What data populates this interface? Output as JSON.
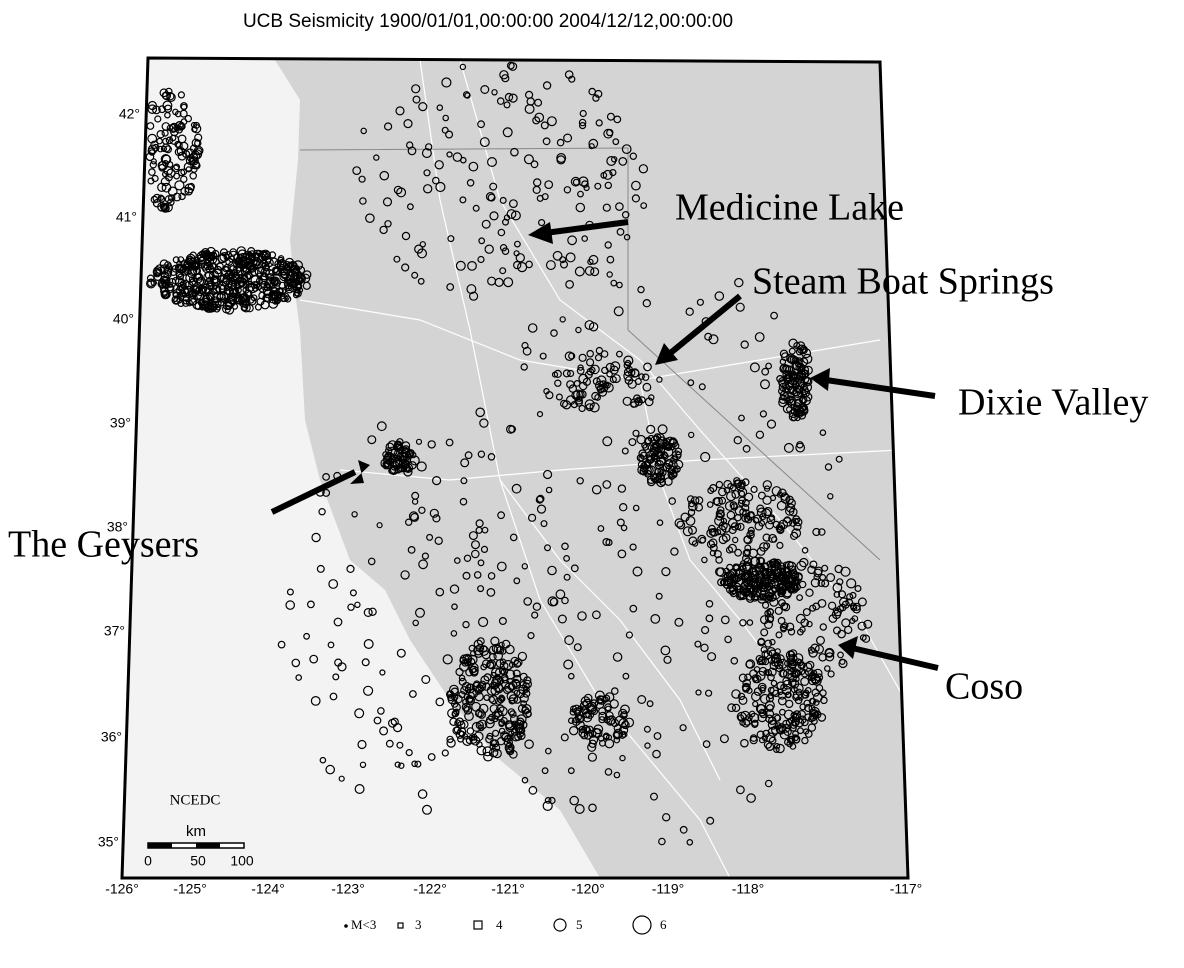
{
  "title": "UCB Seismicity 1900/01/01,00:00:00 2004/12/12,00:00:00",
  "latitude_labels": [
    "42°",
    "41°",
    "40°",
    "39°",
    "38°",
    "37°",
    "36°",
    "35°"
  ],
  "longitude_labels": [
    "-126°",
    "-125°",
    "-124°",
    "-123°",
    "-122°",
    "-121°",
    "-120°",
    "-119°",
    "-118°",
    "-117°"
  ],
  "annotations": [
    "Medicine Lake",
    "Steam Boat Springs",
    "Dixie Valley",
    "The Geysers",
    "Coso"
  ],
  "source": "NCEDC",
  "scale_bar": {
    "unit": "km",
    "labels": [
      "0",
      "50",
      "100"
    ]
  },
  "legend": [
    "M<3",
    "3",
    "4",
    "5",
    "6"
  ]
}
